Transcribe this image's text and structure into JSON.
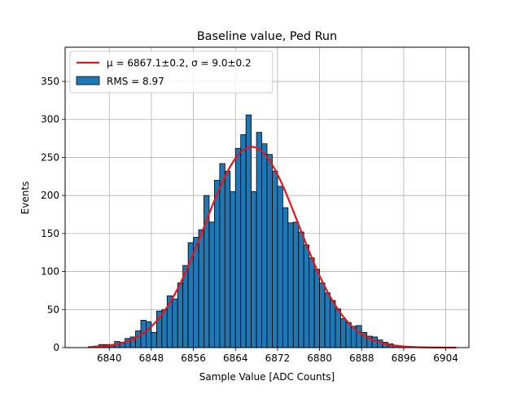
{
  "chart_data": {
    "type": "bar",
    "title": "Baseline value, Ped Run",
    "xlabel": "Sample Value [ADC Counts]",
    "ylabel": "Events",
    "xlim": [
      6831.6,
      6908.4
    ],
    "ylim": [
      0,
      395
    ],
    "xticks": [
      6840,
      6848,
      6856,
      6864,
      6872,
      6880,
      6888,
      6896,
      6904
    ],
    "yticks": [
      0,
      50,
      100,
      150,
      200,
      250,
      300,
      350
    ],
    "grid": true,
    "bin_width": 1,
    "bin_start": 6835,
    "bin_values": [
      0,
      1,
      2,
      4,
      4,
      4,
      8,
      7,
      12,
      14,
      22,
      36,
      34,
      20,
      48,
      50,
      68,
      64,
      85,
      108,
      138,
      145,
      155,
      200,
      165,
      220,
      242,
      232,
      205,
      262,
      280,
      306,
      205,
      283,
      268,
      254,
      232,
      212,
      184,
      164,
      165,
      152,
      135,
      118,
      103,
      85,
      72,
      62,
      51,
      38,
      33,
      28,
      29,
      20,
      15,
      14,
      10,
      7,
      5,
      3,
      2,
      1,
      1,
      1,
      0,
      0,
      0,
      0,
      0,
      0
    ],
    "fit": {
      "mu": 6867.1,
      "sigma": 9.0,
      "amplitude": 264,
      "xrange": [
        6836,
        6906
      ]
    },
    "legend": {
      "placement": "upper-left",
      "entries": [
        {
          "label": "μ = 6867.1±0.2, σ = 9.0±0.2",
          "color": "#e8141a",
          "kind": "line"
        },
        {
          "label": "RMS = 8.97",
          "color": "#1f77b4",
          "kind": "patch"
        }
      ]
    },
    "colors": {
      "bar": "#1f77b4",
      "edge": "#000000",
      "fit": "#e8141a",
      "grid": "#b0b0b0"
    }
  }
}
